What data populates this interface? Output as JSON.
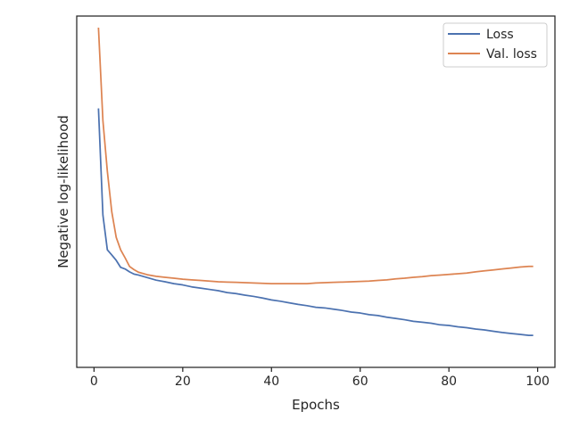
{
  "chart_data": {
    "type": "line",
    "xlabel": "Epochs",
    "ylabel": "Negative log-likelihood",
    "xlim": [
      -3.9,
      103.9
    ],
    "ylim": [
      0,
      100
    ],
    "xticks": [
      0,
      20,
      40,
      60,
      80,
      100
    ],
    "yticks_shown": false,
    "grid": false,
    "legend": {
      "placement": "upper right"
    },
    "series": [
      {
        "name": "Loss",
        "color": "#4c72b0",
        "x": [
          1,
          2,
          3,
          4,
          5,
          6,
          7,
          8,
          9,
          10,
          12,
          14,
          16,
          18,
          20,
          22,
          24,
          26,
          28,
          30,
          32,
          34,
          36,
          38,
          40,
          42,
          44,
          46,
          48,
          50,
          52,
          54,
          56,
          58,
          60,
          62,
          64,
          66,
          68,
          70,
          72,
          74,
          76,
          78,
          80,
          82,
          84,
          86,
          88,
          90,
          92,
          94,
          96,
          98,
          99
        ],
        "y": [
          74.7,
          41.3,
          30.4,
          28.8,
          27.1,
          24.9,
          24.4,
          23.5,
          22.8,
          22.5,
          21.7,
          20.9,
          20.4,
          19.8,
          19.4,
          18.8,
          18.4,
          18.0,
          17.6,
          17.0,
          16.7,
          16.2,
          15.8,
          15.3,
          14.7,
          14.3,
          13.8,
          13.3,
          12.9,
          12.4,
          12.2,
          11.8,
          11.4,
          10.9,
          10.6,
          10.1,
          9.8,
          9.3,
          8.9,
          8.5,
          8.0,
          7.7,
          7.4,
          6.9,
          6.7,
          6.3,
          6.0,
          5.6,
          5.3,
          4.9,
          4.5,
          4.2,
          3.9,
          3.6,
          3.6
        ]
      },
      {
        "name": "Val. loss",
        "color": "#dd8452",
        "x": [
          1,
          2,
          3,
          4,
          5,
          6,
          7,
          8,
          9,
          10,
          12,
          14,
          16,
          18,
          20,
          22,
          24,
          26,
          28,
          30,
          32,
          34,
          36,
          38,
          40,
          42,
          44,
          46,
          48,
          50,
          52,
          54,
          56,
          58,
          60,
          62,
          64,
          66,
          68,
          70,
          72,
          74,
          76,
          78,
          80,
          82,
          84,
          86,
          88,
          90,
          92,
          94,
          96,
          98,
          99
        ],
        "y": [
          100.0,
          70.9,
          55.0,
          42.3,
          34.3,
          30.4,
          27.9,
          25.2,
          24.2,
          23.4,
          22.6,
          22.1,
          21.8,
          21.5,
          21.2,
          21.0,
          20.8,
          20.6,
          20.4,
          20.3,
          20.2,
          20.1,
          20.0,
          19.9,
          19.8,
          19.8,
          19.8,
          19.8,
          19.8,
          20.0,
          20.1,
          20.2,
          20.3,
          20.4,
          20.5,
          20.6,
          20.8,
          21.0,
          21.3,
          21.5,
          21.8,
          22.0,
          22.3,
          22.5,
          22.7,
          22.9,
          23.1,
          23.5,
          23.8,
          24.1,
          24.4,
          24.7,
          25.0,
          25.2,
          25.2
        ]
      }
    ]
  }
}
